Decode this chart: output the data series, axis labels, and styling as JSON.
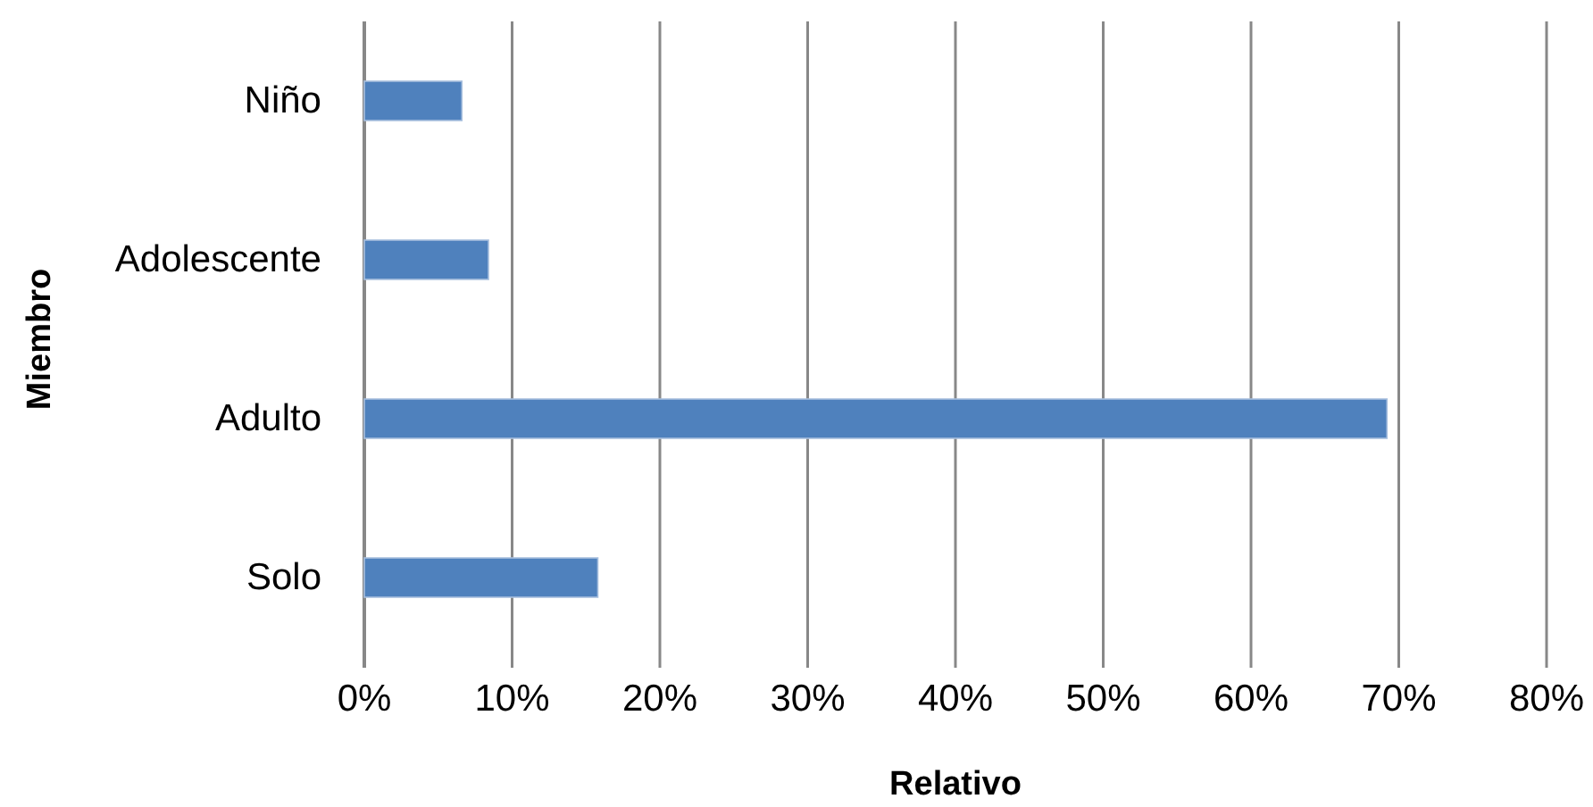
{
  "chart_data": {
    "type": "bar",
    "orientation": "horizontal",
    "xlabel": "Relativo",
    "ylabel": "Miembro",
    "categories": [
      "Niño",
      "Adolescente",
      "Adulto",
      "Solo"
    ],
    "values": [
      6.6,
      8.4,
      69.2,
      15.8
    ],
    "color": "#4f81bd",
    "xlim": [
      0,
      80
    ],
    "xticks": [
      {
        "value": 0,
        "label": "0%"
      },
      {
        "value": 10,
        "label": "10%"
      },
      {
        "value": 20,
        "label": "20%"
      },
      {
        "value": 30,
        "label": "30%"
      },
      {
        "value": 40,
        "label": "40%"
      },
      {
        "value": 50,
        "label": "50%"
      },
      {
        "value": 60,
        "label": "60%"
      },
      {
        "value": 70,
        "label": "70%"
      },
      {
        "value": 80,
        "label": "80%"
      }
    ],
    "grid": "x"
  }
}
